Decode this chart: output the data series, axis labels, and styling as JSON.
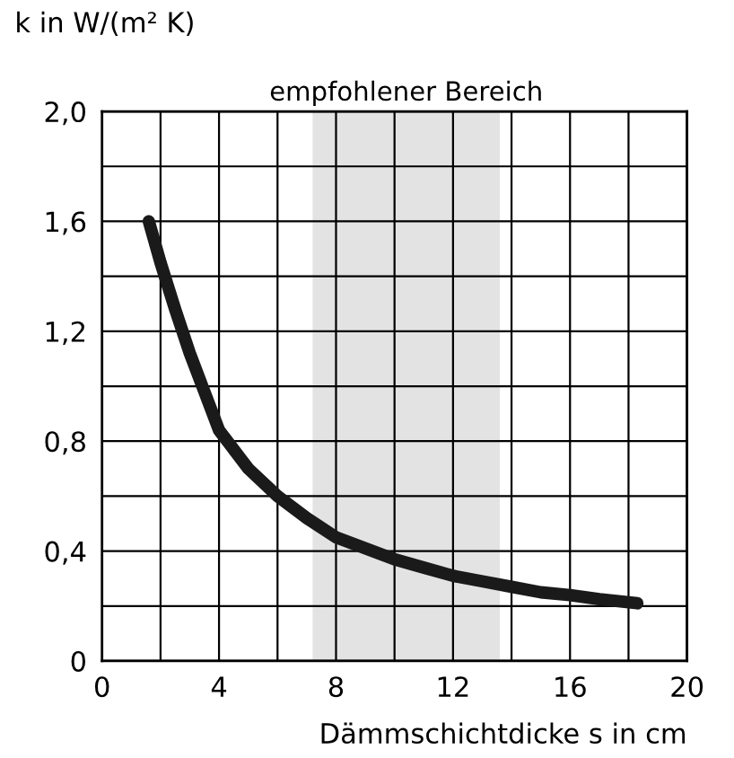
{
  "chart_data": {
    "type": "line",
    "ylabel": "k in W/(m² K)",
    "xlabel": "Dämmschichtdicke s in cm",
    "x": [
      1.6,
      2,
      2.5,
      3,
      3.5,
      4,
      5,
      6,
      7,
      8,
      9,
      10,
      11,
      12,
      13,
      14,
      15,
      16,
      17,
      18.3
    ],
    "series": [
      {
        "color": "#1a1a1a",
        "values": [
          1.6,
          1.45,
          1.28,
          1.12,
          0.98,
          0.84,
          0.7,
          0.6,
          0.52,
          0.45,
          0.41,
          0.37,
          0.34,
          0.31,
          0.29,
          0.27,
          0.25,
          0.24,
          0.225,
          0.21
        ]
      }
    ],
    "xlim": [
      0,
      20
    ],
    "ylim": [
      0,
      2.0
    ],
    "xticks": [
      0,
      {
        "value": 2,
        "label": null
      },
      4,
      {
        "value": 6,
        "label": null
      },
      8,
      {
        "value": 10,
        "label": null
      },
      12,
      {
        "value": 14,
        "label": null
      },
      16,
      {
        "value": 18,
        "label": null
      },
      20
    ],
    "yticks": [
      0,
      {
        "value": 0.2,
        "label": null
      },
      {
        "value": 0.4,
        "label": "0,4"
      },
      {
        "value": 0.6,
        "label": null
      },
      {
        "value": 0.8,
        "label": "0,8"
      },
      {
        "value": 1.0,
        "label": null
      },
      {
        "value": 1.2,
        "label": "1,2"
      },
      {
        "value": 1.4,
        "label": null
      },
      {
        "value": 1.6,
        "label": "1,6"
      },
      {
        "value": 1.8,
        "label": null
      },
      {
        "value": 2.0,
        "label": "2,0"
      }
    ],
    "bands": [
      {
        "axis": "x",
        "from": 7.2,
        "to": 13.6,
        "label": "empfohlener Bereich",
        "color": "#e3e3e3"
      }
    ],
    "grid": true,
    "marker": "none",
    "line_style": "solid",
    "legend": false
  }
}
